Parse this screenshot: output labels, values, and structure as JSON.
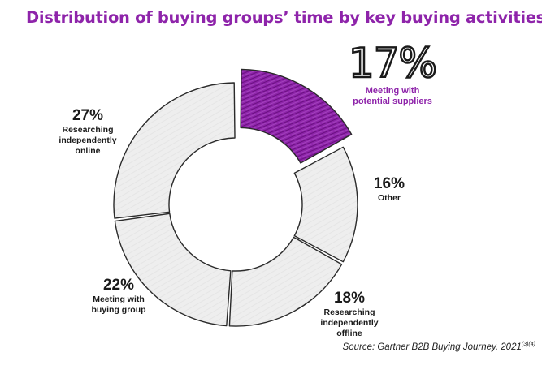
{
  "chart_data": {
    "type": "pie",
    "style": "donut, hand-drawn sketch",
    "title": "Distribution of buying groups’ time by key buying activities",
    "categories": [
      "Meeting with potential suppliers",
      "Other",
      "Researching independently offline",
      "Meeting with buying group",
      "Researching independently online"
    ],
    "labels": [
      "17%",
      "16%",
      "18%",
      "22%",
      "27%"
    ],
    "values": [
      17,
      16,
      18,
      22,
      27
    ],
    "highlight": "Meeting with potential suppliers",
    "colors": {
      "slice": "#eeeeee",
      "highlight": "#8e24aa",
      "outline": "#2a2a2a"
    },
    "legend": "none"
  },
  "source": {
    "text": "Source: Gartner B2B Buying Journey, 2021",
    "note": "(3)(4)"
  }
}
